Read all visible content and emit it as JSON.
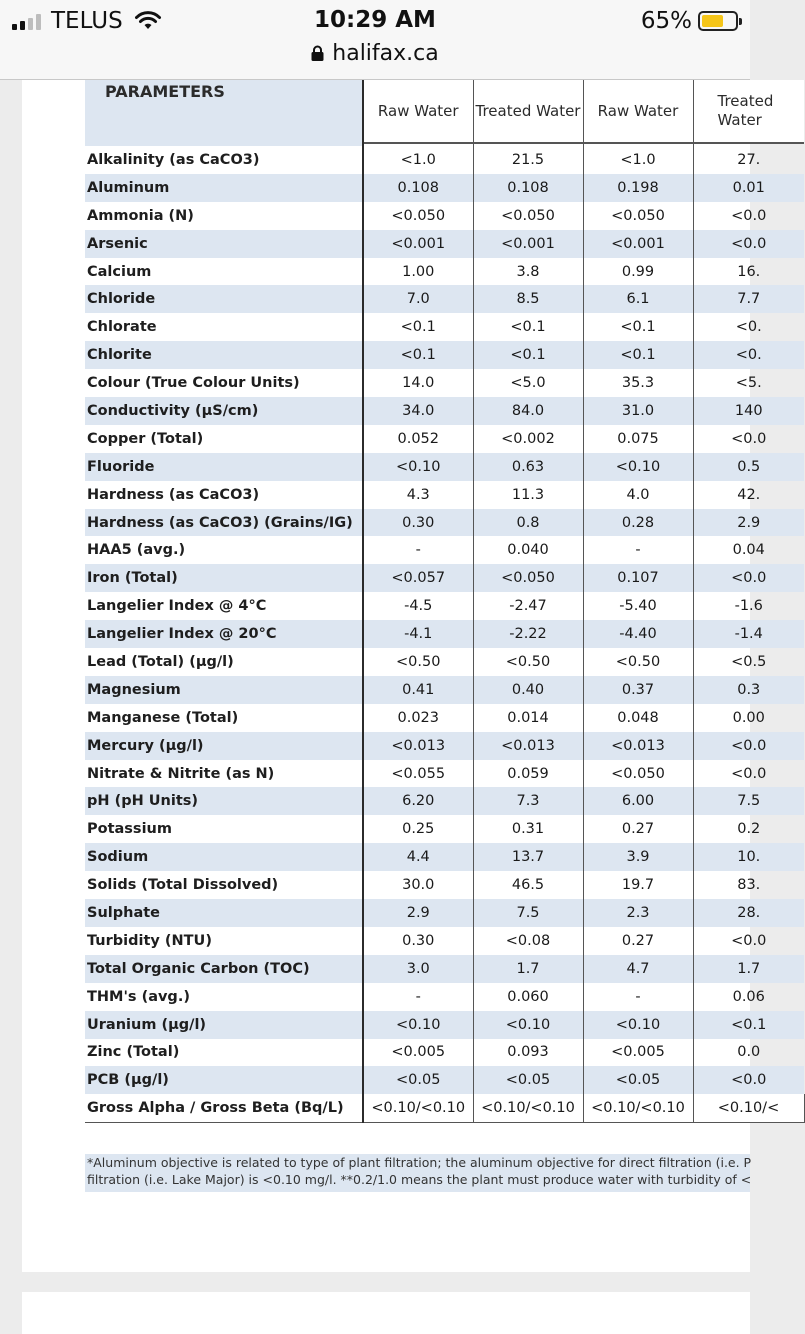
{
  "status_bar": {
    "carrier": "TELUS",
    "time": "10:29 AM",
    "url": "halifax.ca",
    "battery_percent": "65%",
    "battery_level": 0.65,
    "icons": [
      "signal-icon",
      "wifi-icon",
      "lock-icon",
      "battery-icon"
    ]
  },
  "table": {
    "param_header": "PARAMETERS",
    "columns": [
      "Raw Water",
      "Treated Water",
      "Raw Water",
      "Treated Water"
    ],
    "rows": [
      {
        "param": "Alkalinity (as CaCO3)",
        "values": [
          "<1.0",
          "21.5",
          "<1.0",
          "27."
        ]
      },
      {
        "param": "Aluminum",
        "values": [
          "0.108",
          "0.108",
          "0.198",
          "0.01"
        ]
      },
      {
        "param": "Ammonia (N)",
        "values": [
          "<0.050",
          "<0.050",
          "<0.050",
          "<0.0"
        ]
      },
      {
        "param": "Arsenic",
        "values": [
          "<0.001",
          "<0.001",
          "<0.001",
          "<0.0"
        ]
      },
      {
        "param": "Calcium",
        "values": [
          "1.00",
          "3.8",
          "0.99",
          "16."
        ]
      },
      {
        "param": "Chloride",
        "values": [
          "7.0",
          "8.5",
          "6.1",
          "7.7"
        ]
      },
      {
        "param": "Chlorate",
        "values": [
          "<0.1",
          "<0.1",
          "<0.1",
          "<0."
        ]
      },
      {
        "param": "Chlorite",
        "values": [
          "<0.1",
          "<0.1",
          "<0.1",
          "<0."
        ]
      },
      {
        "param": "Colour (True Colour Units)",
        "values": [
          "14.0",
          "<5.0",
          "35.3",
          "<5."
        ]
      },
      {
        "param": "Conductivity (μS/cm)",
        "values": [
          "34.0",
          "84.0",
          "31.0",
          "140"
        ]
      },
      {
        "param": "Copper (Total)",
        "values": [
          "0.052",
          "<0.002",
          "0.075",
          "<0.0"
        ]
      },
      {
        "param": "Fluoride",
        "values": [
          "<0.10",
          "0.63",
          "<0.10",
          "0.5"
        ]
      },
      {
        "param": "Hardness (as CaCO3)",
        "values": [
          "4.3",
          "11.3",
          "4.0",
          "42."
        ]
      },
      {
        "param": "Hardness (as CaCO3) (Grains/IG)",
        "values": [
          "0.30",
          "0.8",
          "0.28",
          "2.9"
        ]
      },
      {
        "param": "HAA5 (avg.)",
        "values": [
          "-",
          "0.040",
          "-",
          "0.04"
        ]
      },
      {
        "param": "Iron (Total)",
        "values": [
          "<0.057",
          "<0.050",
          "0.107",
          "<0.0"
        ]
      },
      {
        "param": "Langelier Index @ 4°C",
        "values": [
          "-4.5",
          "-2.47",
          "-5.40",
          "-1.6"
        ]
      },
      {
        "param": "Langelier Index @ 20°C",
        "values": [
          "-4.1",
          "-2.22",
          "-4.40",
          "-1.4"
        ]
      },
      {
        "param": "Lead (Total) (μg/l)",
        "values": [
          "<0.50",
          "<0.50",
          "<0.50",
          "<0.5"
        ]
      },
      {
        "param": "Magnesium",
        "values": [
          "0.41",
          "0.40",
          "0.37",
          "0.3"
        ]
      },
      {
        "param": "Manganese (Total)",
        "values": [
          "0.023",
          "0.014",
          "0.048",
          "0.00"
        ]
      },
      {
        "param": "Mercury (μg/l)",
        "values": [
          "<0.013",
          "<0.013",
          "<0.013",
          "<0.0"
        ]
      },
      {
        "param": "Nitrate & Nitrite (as N)",
        "values": [
          "<0.055",
          "0.059",
          "<0.050",
          "<0.0"
        ]
      },
      {
        "param": "pH (pH Units)",
        "values": [
          "6.20",
          "7.3",
          "6.00",
          "7.5"
        ]
      },
      {
        "param": "Potassium",
        "values": [
          "0.25",
          "0.31",
          "0.27",
          "0.2"
        ]
      },
      {
        "param": "Sodium",
        "values": [
          "4.4",
          "13.7",
          "3.9",
          "10."
        ]
      },
      {
        "param": "Solids (Total Dissolved)",
        "values": [
          "30.0",
          "46.5",
          "19.7",
          "83."
        ]
      },
      {
        "param": "Sulphate",
        "values": [
          "2.9",
          "7.5",
          "2.3",
          "28."
        ]
      },
      {
        "param": "Turbidity (NTU)",
        "values": [
          "0.30",
          "<0.08",
          "0.27",
          "<0.0"
        ]
      },
      {
        "param": "Total Organic Carbon (TOC)",
        "values": [
          "3.0",
          "1.7",
          "4.7",
          "1.7"
        ]
      },
      {
        "param": "THM's (avg.)",
        "values": [
          "-",
          "0.060",
          "-",
          "0.06"
        ]
      },
      {
        "param": "Uranium (μg/l)",
        "values": [
          "<0.10",
          "<0.10",
          "<0.10",
          "<0.1"
        ]
      },
      {
        "param": "Zinc (Total)",
        "values": [
          "<0.005",
          "0.093",
          "<0.005",
          "0.0"
        ]
      },
      {
        "param": "PCB (μg/l)",
        "values": [
          "<0.05",
          "<0.05",
          "<0.05",
          "<0.0"
        ]
      },
      {
        "param": "Gross Alpha / Gross Beta (Bq/L)",
        "values": [
          "<0.10/<0.10",
          "<0.10/<0.10",
          "<0.10/<0.10",
          "<0.10/<"
        ]
      }
    ]
  },
  "footnote": {
    "line1": "*Aluminum objective is related to type of plant filtration; the aluminum objective for direct filtration (i.e. P",
    "line2": "filtration (i.e. Lake Major) is <0.10 mg/l. **0.2/1.0 means the plant must produce water with turbidity of <"
  }
}
